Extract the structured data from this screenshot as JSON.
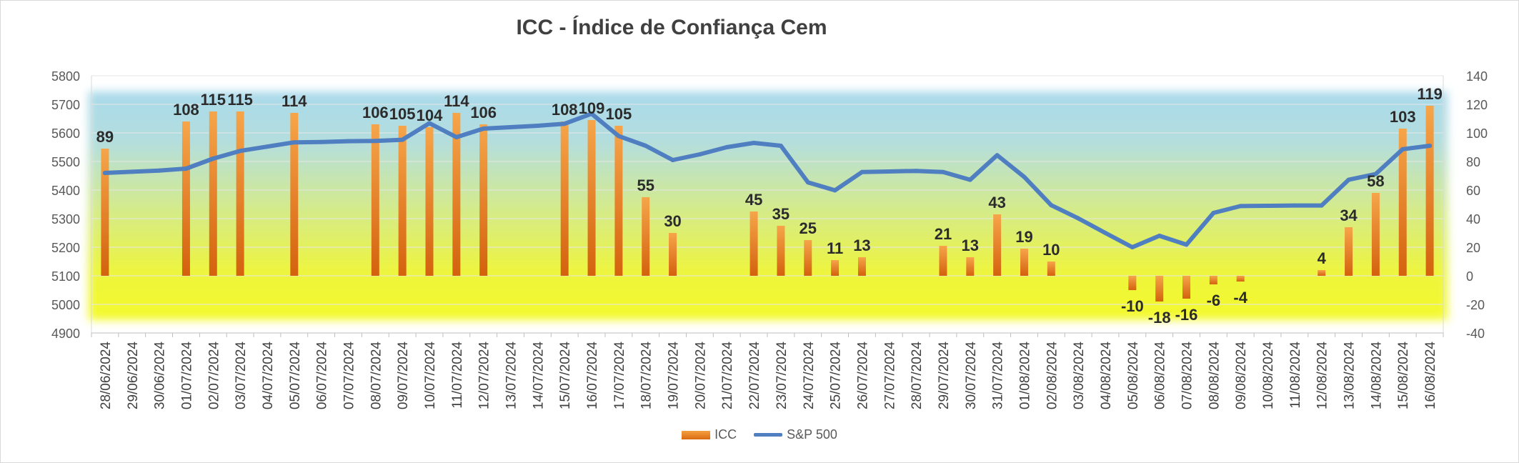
{
  "chart_data": {
    "type": "bar+line",
    "title": "ICC - Índice de Confiança Cem",
    "categories": [
      "28/06/2024",
      "29/06/2024",
      "30/06/2024",
      "01/07/2024",
      "02/07/2024",
      "03/07/2024",
      "04/07/2024",
      "05/07/2024",
      "06/07/2024",
      "07/07/2024",
      "08/07/2024",
      "09/07/2024",
      "10/07/2024",
      "11/07/2024",
      "12/07/2024",
      "13/07/2024",
      "14/07/2024",
      "15/07/2024",
      "16/07/2024",
      "17/07/2024",
      "18/07/2024",
      "19/07/2024",
      "20/07/2024",
      "21/07/2024",
      "22/07/2024",
      "23/07/2024",
      "24/07/2024",
      "25/07/2024",
      "26/07/2024",
      "27/07/2024",
      "28/07/2024",
      "29/07/2024",
      "30/07/2024",
      "31/07/2024",
      "01/08/2024",
      "02/08/2024",
      "03/08/2024",
      "04/08/2024",
      "05/08/2024",
      "06/08/2024",
      "07/08/2024",
      "08/08/2024",
      "09/08/2024",
      "10/08/2024",
      "11/08/2024",
      "12/08/2024",
      "13/08/2024",
      "14/08/2024",
      "15/08/2024",
      "16/08/2024"
    ],
    "series": [
      {
        "name": "ICC",
        "kind": "bar",
        "axis": "right",
        "values": [
          89,
          null,
          null,
          108,
          115,
          115,
          null,
          114,
          null,
          null,
          106,
          105,
          104,
          114,
          106,
          null,
          null,
          108,
          109,
          105,
          55,
          30,
          null,
          null,
          45,
          35,
          25,
          11,
          13,
          null,
          null,
          21,
          13,
          43,
          19,
          10,
          null,
          null,
          -10,
          -18,
          -16,
          -6,
          -4,
          null,
          null,
          4,
          34,
          58,
          103,
          119
        ]
      },
      {
        "name": "S&P 500",
        "kind": "line",
        "axis": "left",
        "values": [
          5460,
          5464,
          5468,
          5475,
          5510,
          5537,
          5552,
          5567,
          5568,
          5571,
          5572,
          5576,
          5634,
          5585,
          5615,
          5620,
          5625,
          5632,
          5667,
          5589,
          5555,
          5505,
          5525,
          5550,
          5565,
          5555,
          5427,
          5399,
          5463,
          5465,
          5467,
          5463,
          5436,
          5522,
          5446,
          5347,
          5301,
          5250,
          5200,
          5240,
          5209,
          5320,
          5344,
          5345,
          5346,
          5346,
          5436,
          5456,
          5543,
          5555
        ]
      }
    ],
    "y_left": {
      "min": 4900,
      "max": 5800,
      "step": 100,
      "ticks": [
        "5800",
        "5700",
        "5600",
        "5500",
        "5400",
        "5300",
        "5200",
        "5100",
        "5000",
        "4900"
      ]
    },
    "y_right": {
      "min": -40,
      "max": 140,
      "step": 20,
      "ticks": [
        "140",
        "120",
        "100",
        "80",
        "60",
        "40",
        "20",
        "0",
        "-20",
        "-40"
      ]
    },
    "legend": [
      "ICC",
      "S&P 500"
    ],
    "legend_position": "bottom",
    "colors": {
      "bar_top": "#f6a54a",
      "bar_bottom": "#d4620e",
      "line": "#4f7fc1",
      "band_top": "#a9d9ea",
      "band_mid": "#d3ea8f",
      "band_bottom": "#f4fa2c",
      "label": "#2b2b2b",
      "axis_text": "#595959",
      "grid": "#e6e6e6"
    }
  }
}
